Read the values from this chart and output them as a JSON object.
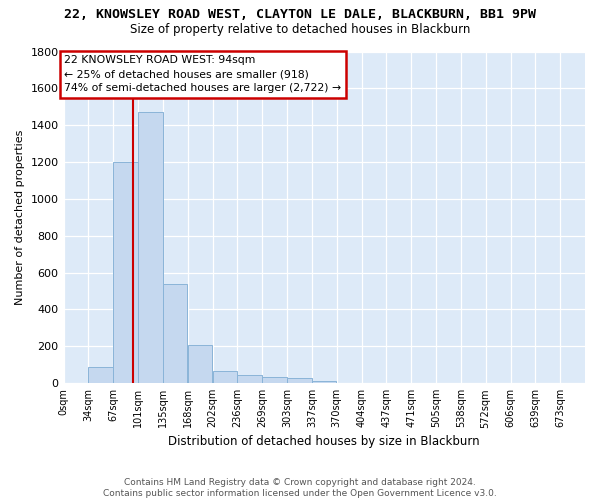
{
  "title": "22, KNOWSLEY ROAD WEST, CLAYTON LE DALE, BLACKBURN, BB1 9PW",
  "subtitle": "Size of property relative to detached houses in Blackburn",
  "xlabel": "Distribution of detached houses by size in Blackburn",
  "ylabel": "Number of detached properties",
  "footer_line1": "Contains HM Land Registry data © Crown copyright and database right 2024.",
  "footer_line2": "Contains public sector information licensed under the Open Government Licence v3.0.",
  "bin_labels": [
    "0sqm",
    "34sqm",
    "67sqm",
    "101sqm",
    "135sqm",
    "168sqm",
    "202sqm",
    "236sqm",
    "269sqm",
    "303sqm",
    "337sqm",
    "370sqm",
    "404sqm",
    "437sqm",
    "471sqm",
    "505sqm",
    "538sqm",
    "572sqm",
    "606sqm",
    "639sqm",
    "673sqm"
  ],
  "bar_values": [
    0,
    90,
    1200,
    1470,
    540,
    205,
    65,
    45,
    35,
    27,
    12,
    0,
    0,
    0,
    0,
    0,
    0,
    0,
    0,
    0,
    0
  ],
  "bar_color": "#c5d8ef",
  "bar_edge_color": "#8ab4d8",
  "property_sqm": 94,
  "annotation_line1": "22 KNOWSLEY ROAD WEST: 94sqm",
  "annotation_line2": "← 25% of detached houses are smaller (918)",
  "annotation_line3": "74% of semi-detached houses are larger (2,722) →",
  "vline_color": "#cc0000",
  "ann_box_edge": "#cc0000",
  "ylim_max": 1800,
  "yticks": [
    0,
    200,
    400,
    600,
    800,
    1000,
    1200,
    1400,
    1600,
    1800
  ],
  "bg_color": "#ddeaf8",
  "fig_bg": "#ffffff",
  "bin_width": 33.5
}
